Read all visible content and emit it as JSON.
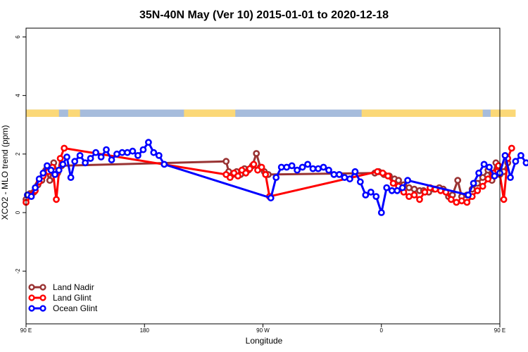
{
  "chart_data": {
    "type": "line",
    "title": "35N-40N May (Ver 10)   2015-01-01 to 2020-12-18",
    "xlabel": "Longitude",
    "ylabel": "XCO2 - MLO trend (ppm)",
    "xlim": [
      90,
      450
    ],
    "ylim": [
      -3.8,
      6.3
    ],
    "x_ticks": [
      {
        "value": 90,
        "label": "90 E"
      },
      {
        "value": 180,
        "label": "180"
      },
      {
        "value": 270,
        "label": "90 W"
      },
      {
        "value": 360,
        "label": "0"
      },
      {
        "value": 450,
        "label": "90 E"
      },
      {
        "value": 540,
        "label": "180"
      }
    ],
    "y_ticks": [
      {
        "value": -2,
        "label": "-2"
      },
      {
        "value": 0,
        "label": "0"
      },
      {
        "value": 2,
        "label": "2"
      },
      {
        "value": 4,
        "label": "4"
      },
      {
        "value": 6,
        "label": "6"
      }
    ],
    "land_ocean_strip": {
      "y_range": [
        3.27,
        3.52
      ],
      "land_color": "#FBD877",
      "ocean_color": "#A6BCDC",
      "land_segments": [
        [
          90,
          115
        ],
        [
          122,
          131
        ],
        [
          210,
          249
        ],
        [
          345,
          437
        ],
        [
          443,
          462
        ]
      ]
    },
    "legend": {
      "position": "bottom-left"
    },
    "series": [
      {
        "name": "Land Nadir",
        "color": "#993333",
        "points": [
          [
            90,
            0.45
          ],
          [
            93,
            0.65
          ],
          [
            96,
            0.7
          ],
          [
            99,
            0.95
          ],
          [
            102,
            1.1
          ],
          [
            105,
            1.45
          ],
          [
            108,
            1.1
          ],
          [
            111,
            1.7
          ],
          [
            114,
            1.35
          ],
          [
            117,
            1.6
          ],
          [
            242,
            1.75
          ],
          [
            244,
            1.4
          ],
          [
            247,
            1.3
          ],
          [
            250,
            1.4
          ],
          [
            253,
            1.3
          ],
          [
            256,
            1.5
          ],
          [
            259,
            1.45
          ],
          [
            262,
            1.6
          ],
          [
            265,
            2.02
          ],
          [
            268,
            1.55
          ],
          [
            271,
            1.4
          ],
          [
            274,
            1.3
          ],
          [
            355,
            1.35
          ],
          [
            358,
            1.4
          ],
          [
            362,
            1.3
          ],
          [
            366,
            1.25
          ],
          [
            370,
            1.15
          ],
          [
            373,
            1.1
          ],
          [
            377,
            0.95
          ],
          [
            381,
            0.85
          ],
          [
            385,
            0.8
          ],
          [
            389,
            0.75
          ],
          [
            392,
            0.75
          ],
          [
            396,
            0.7
          ],
          [
            400,
            0.8
          ],
          [
            404,
            0.85
          ],
          [
            407,
            0.8
          ],
          [
            411,
            0.55
          ],
          [
            414,
            0.6
          ],
          [
            418,
            1.1
          ],
          [
            421,
            0.55
          ],
          [
            425,
            0.6
          ],
          [
            429,
            0.8
          ],
          [
            433,
            1.0
          ],
          [
            437,
            1.2
          ],
          [
            441,
            1.45
          ],
          [
            444,
            1.1
          ],
          [
            447,
            1.7
          ],
          [
            450,
            1.3
          ],
          [
            453,
            1.4
          ],
          [
            456,
            1.7
          ]
        ]
      },
      {
        "name": "Land Glint",
        "color": "#FF0000",
        "points": [
          [
            90,
            0.35
          ],
          [
            94,
            0.6
          ],
          [
            97,
            0.75
          ],
          [
            100,
            1.05
          ],
          [
            103,
            1.25
          ],
          [
            107,
            1.4
          ],
          [
            110,
            1.55
          ],
          [
            113,
            0.45
          ],
          [
            116,
            1.85
          ],
          [
            119,
            2.2
          ],
          [
            242,
            1.3
          ],
          [
            245,
            1.2
          ],
          [
            248,
            1.35
          ],
          [
            251,
            1.25
          ],
          [
            254,
            1.45
          ],
          [
            257,
            1.35
          ],
          [
            260,
            1.5
          ],
          [
            263,
            1.65
          ],
          [
            266,
            1.45
          ],
          [
            269,
            1.55
          ],
          [
            272,
            1.3
          ],
          [
            275,
            0.55
          ],
          [
            357,
            1.4
          ],
          [
            361,
            1.35
          ],
          [
            365,
            1.25
          ],
          [
            369,
            1.0
          ],
          [
            373,
            0.9
          ],
          [
            377,
            0.7
          ],
          [
            381,
            0.55
          ],
          [
            385,
            0.6
          ],
          [
            389,
            0.45
          ],
          [
            393,
            0.7
          ],
          [
            397,
            0.85
          ],
          [
            401,
            0.8
          ],
          [
            405,
            0.75
          ],
          [
            409,
            0.7
          ],
          [
            413,
            0.45
          ],
          [
            417,
            0.35
          ],
          [
            421,
            0.4
          ],
          [
            425,
            0.35
          ],
          [
            429,
            0.55
          ],
          [
            433,
            0.75
          ],
          [
            437,
            0.9
          ],
          [
            441,
            1.15
          ],
          [
            445,
            1.35
          ],
          [
            449,
            1.6
          ],
          [
            453,
            0.45
          ],
          [
            456,
            1.85
          ],
          [
            459,
            2.2
          ]
        ]
      },
      {
        "name": "Ocean Glint",
        "color": "#0000FF",
        "points": [
          [
            91,
            0.6
          ],
          [
            94,
            0.55
          ],
          [
            97,
            0.85
          ],
          [
            100,
            1.15
          ],
          [
            103,
            1.35
          ],
          [
            106,
            1.6
          ],
          [
            109,
            1.45
          ],
          [
            112,
            1.3
          ],
          [
            115,
            1.45
          ],
          [
            118,
            1.65
          ],
          [
            121,
            1.9
          ],
          [
            124,
            1.2
          ],
          [
            127,
            1.75
          ],
          [
            131,
            1.95
          ],
          [
            135,
            1.7
          ],
          [
            139,
            1.85
          ],
          [
            143,
            2.05
          ],
          [
            147,
            1.9
          ],
          [
            151,
            2.15
          ],
          [
            155,
            1.8
          ],
          [
            159,
            2.0
          ],
          [
            163,
            2.05
          ],
          [
            167,
            2.05
          ],
          [
            171,
            2.1
          ],
          [
            175,
            1.95
          ],
          [
            179,
            2.15
          ],
          [
            183,
            2.4
          ],
          [
            187,
            2.05
          ],
          [
            191,
            1.95
          ],
          [
            195,
            1.65
          ],
          [
            276,
            0.5
          ],
          [
            280,
            1.2
          ],
          [
            284,
            1.55
          ],
          [
            288,
            1.55
          ],
          [
            292,
            1.6
          ],
          [
            296,
            1.45
          ],
          [
            300,
            1.55
          ],
          [
            304,
            1.65
          ],
          [
            308,
            1.5
          ],
          [
            312,
            1.5
          ],
          [
            316,
            1.55
          ],
          [
            320,
            1.45
          ],
          [
            324,
            1.3
          ],
          [
            328,
            1.3
          ],
          [
            332,
            1.2
          ],
          [
            336,
            1.15
          ],
          [
            340,
            1.4
          ],
          [
            344,
            1.05
          ],
          [
            348,
            0.6
          ],
          [
            352,
            0.7
          ],
          [
            356,
            0.55
          ],
          [
            360,
            0.0
          ],
          [
            364,
            0.85
          ],
          [
            368,
            0.75
          ],
          [
            372,
            0.75
          ],
          [
            376,
            0.85
          ],
          [
            380,
            1.1
          ],
          [
            426,
            0.6
          ],
          [
            430,
            1.0
          ],
          [
            434,
            1.35
          ],
          [
            438,
            1.65
          ],
          [
            442,
            1.55
          ],
          [
            446,
            1.25
          ],
          [
            450,
            1.35
          ],
          [
            454,
            1.95
          ],
          [
            458,
            1.2
          ],
          [
            462,
            1.75
          ],
          [
            466,
            1.95
          ],
          [
            470,
            1.7
          ],
          [
            474,
            1.8
          ],
          [
            478,
            2.1
          ],
          [
            482,
            1.95
          ]
        ]
      }
    ]
  }
}
